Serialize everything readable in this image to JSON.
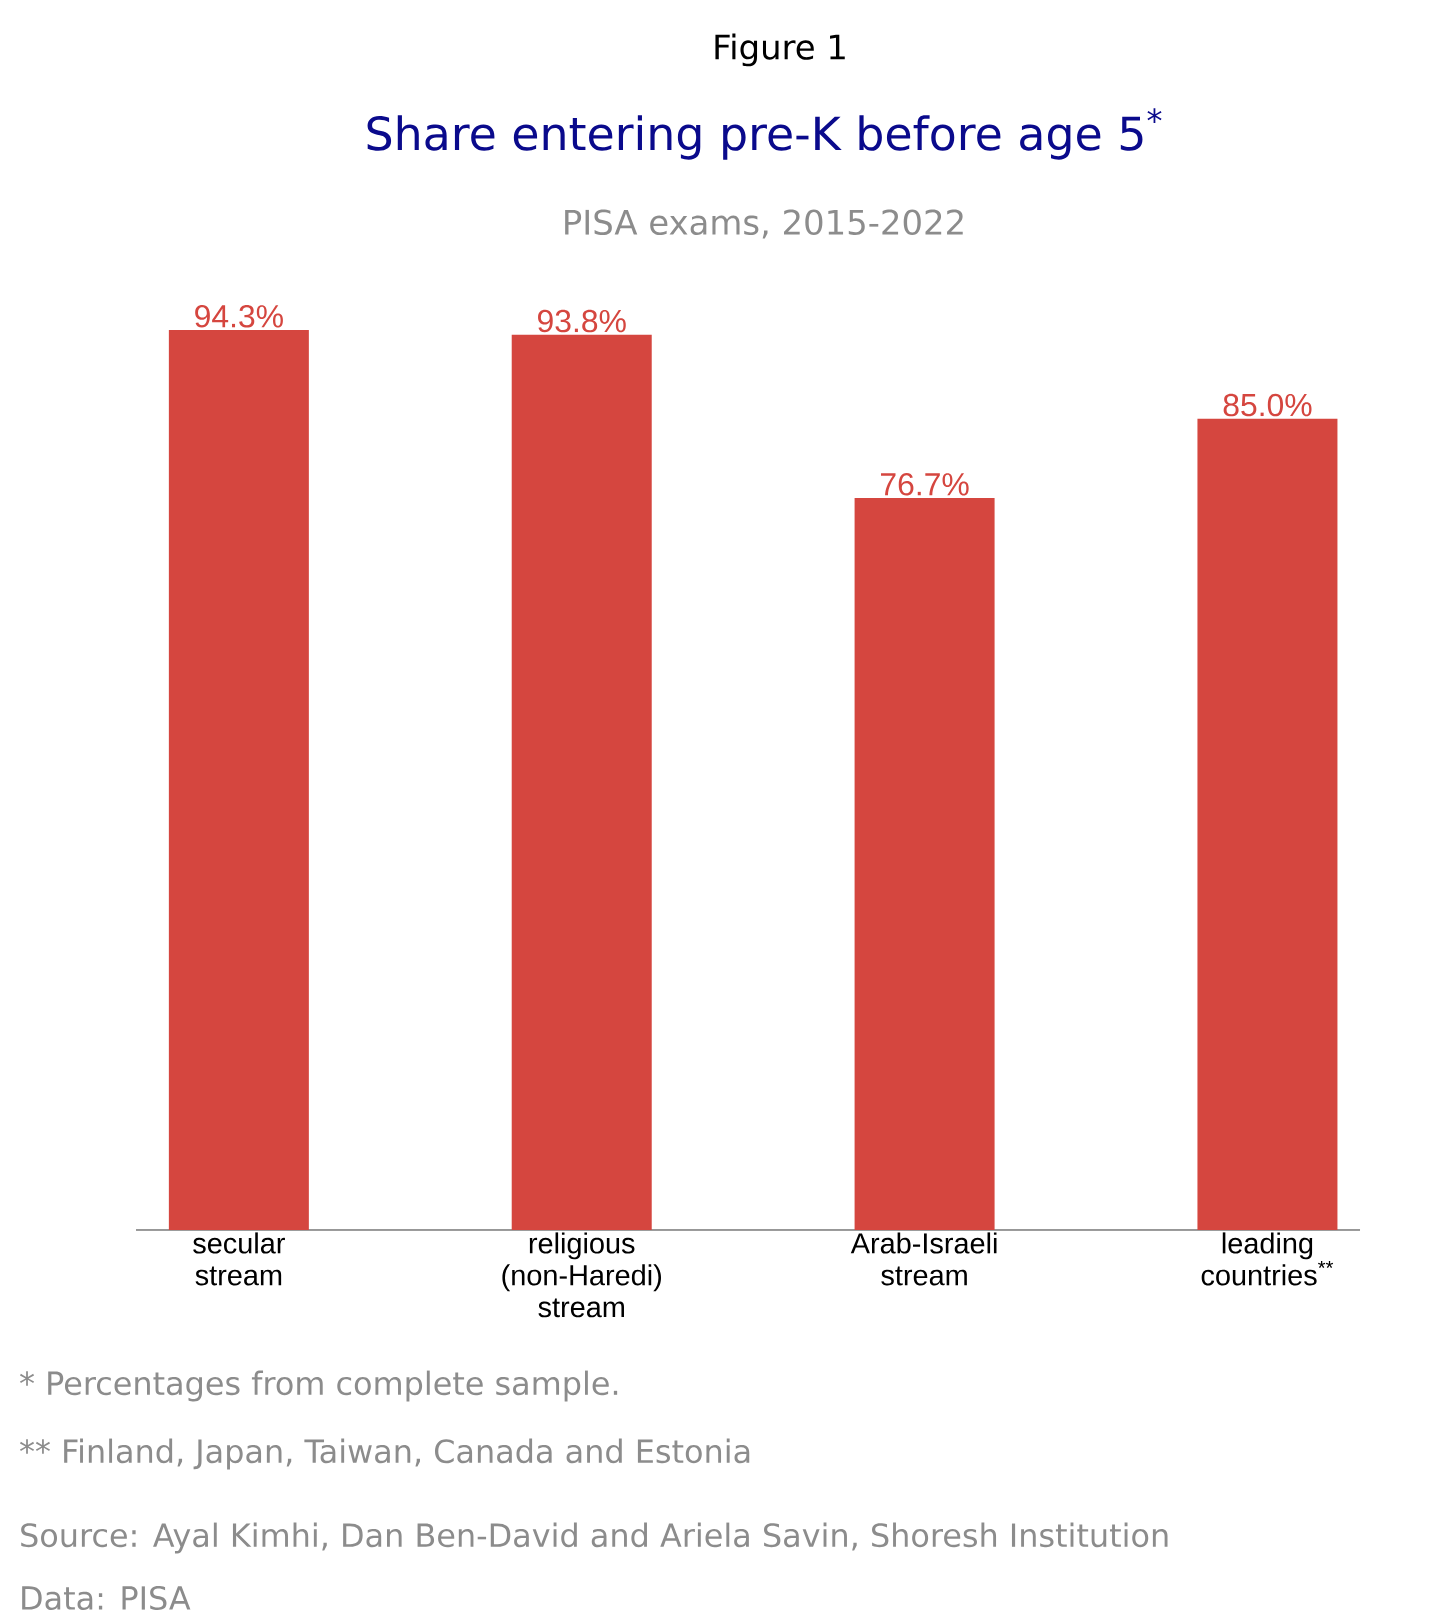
{
  "chart_data": {
    "type": "bar",
    "title": "Share entering pre-K before age 5$^{*}$",
    "subtitle": "PISA exams, 2015-2022",
    "categories": [
      "secular stream",
      "religious (non-Haredi) stream",
      "Arab-Israeli stream",
      "leading countries$^{**}$"
    ],
    "values": [
      94.3,
      93.8,
      76.7,
      85.0
    ],
    "value_labels": [
      "94.3%",
      "93.8%",
      "76.7%",
      "85.0%"
    ],
    "color": "#d5463f",
    "annotations": [
      "Figure 1",
      "* Percentages from complete sample.",
      "** Finland, Japan, Taiwan, Canada and Estonia",
      "Source: Ayal Kimhi, Dan Ben-David and Ariela Savin, Shoresh Institution",
      "Data: PISA"
    ]
  }
}
